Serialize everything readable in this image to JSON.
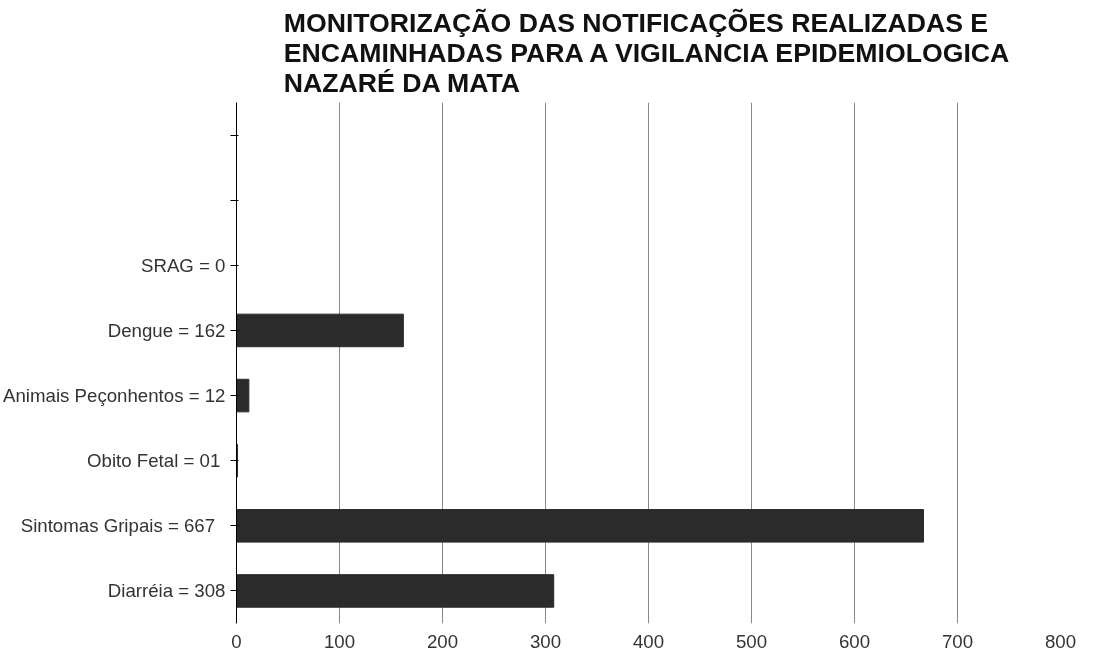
{
  "chart_data": {
    "type": "bar",
    "orientation": "horizontal",
    "title": "MONITORIZAÇÃO DAS NOTIFICAÇÕES REALIZADAS E\nENCAMINHADAS PARA A VIGILANCIA EPIDEMIOLOGICA\nNAZARÉ DA MATA",
    "categories": [
      null,
      null,
      "SRAG = 0",
      "Dengue = 162",
      "Animais Peçonhentos = 12",
      "Obito Fetal  = 01",
      "Sintomas Gripais   = 667",
      "Diarréia = 308"
    ],
    "values": [
      null,
      null,
      0,
      162,
      12,
      1,
      667,
      308
    ],
    "color": "#2b2b2b",
    "xlim": [
      0,
      800
    ],
    "xticks": [
      0,
      100,
      200,
      300,
      400,
      500,
      600,
      700,
      800
    ],
    "grid": "x"
  }
}
